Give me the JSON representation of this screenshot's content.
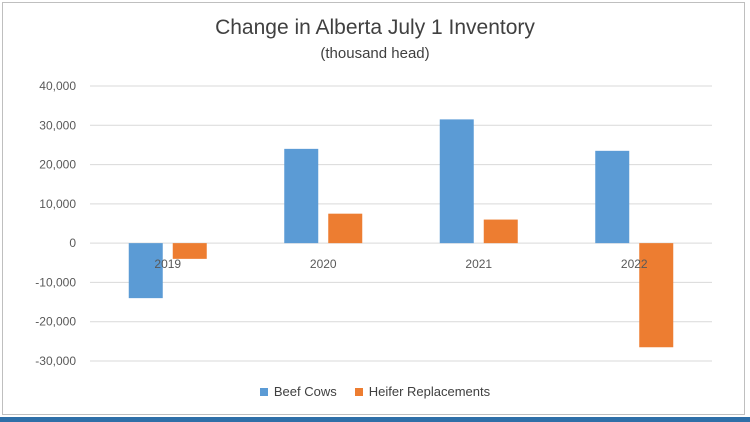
{
  "chart_data": {
    "type": "bar",
    "title": "Change in Alberta July 1 Inventory",
    "subtitle": "(thousand head)",
    "categories": [
      "2019",
      "2020",
      "2021",
      "2022"
    ],
    "series": [
      {
        "name": "Beef Cows",
        "color": "#5b9bd5",
        "values": [
          -14000,
          24000,
          31500,
          23500
        ]
      },
      {
        "name": "Heifer Replacements",
        "color": "#ed7d31",
        "values": [
          -4000,
          7500,
          6000,
          -26500
        ]
      }
    ],
    "ylim": [
      -30000,
      40000
    ],
    "yticks": [
      "40,000",
      "30,000",
      "20,000",
      "10,000",
      "0",
      "-10,000",
      "-20,000",
      "-30,000"
    ],
    "ytick_values": [
      40000,
      30000,
      20000,
      10000,
      0,
      -10000,
      -20000,
      -30000
    ],
    "grid": true,
    "legend_position": "bottom"
  }
}
